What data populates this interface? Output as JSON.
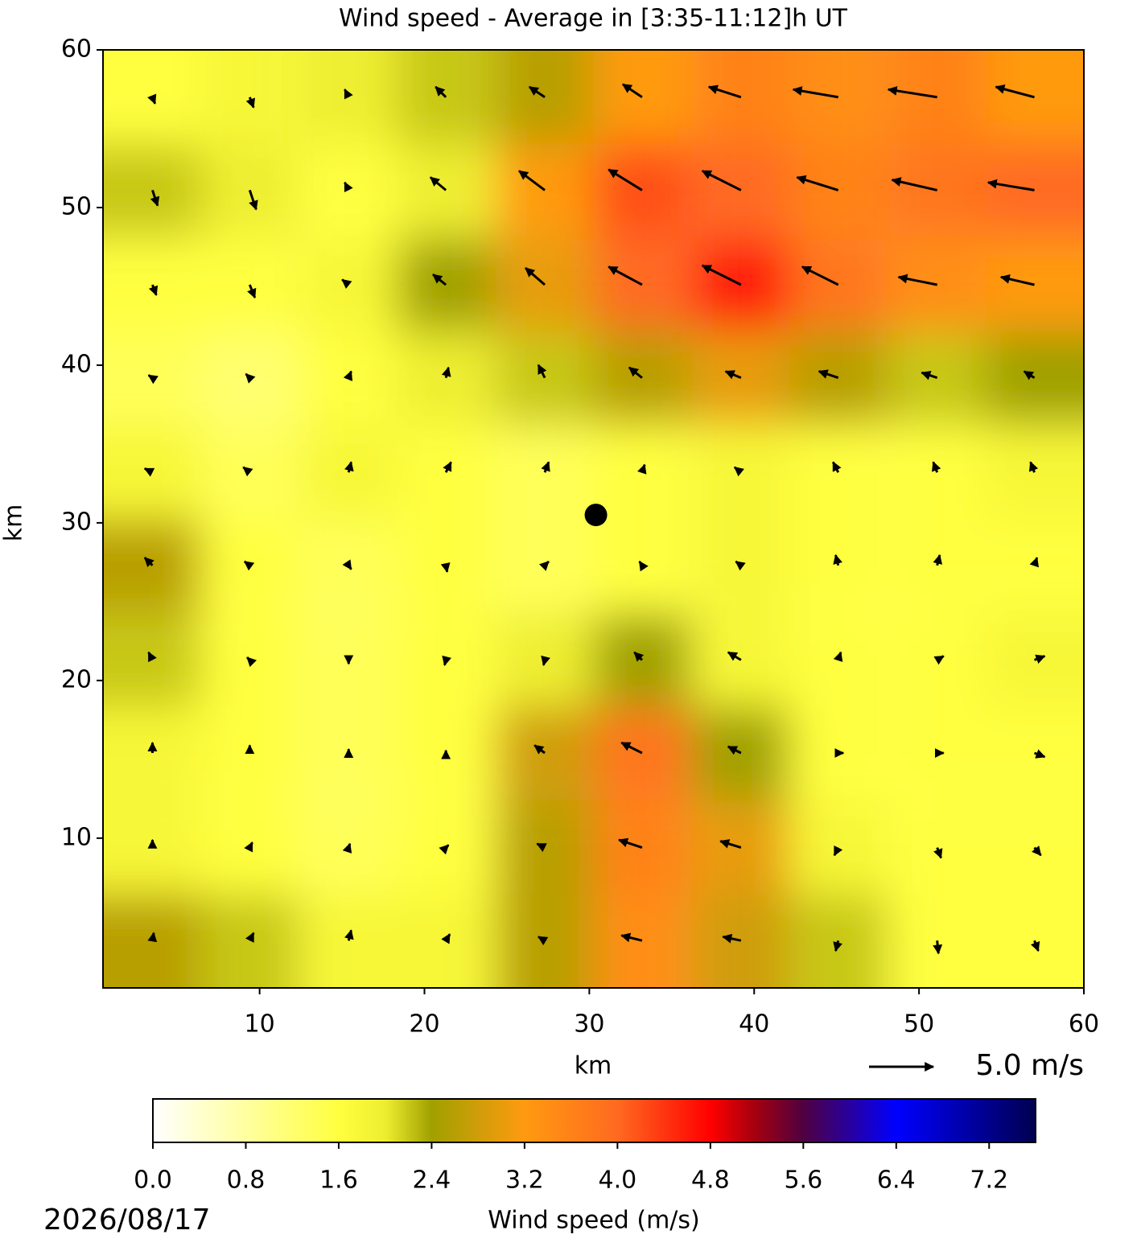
{
  "chart_data": {
    "type": "heatmap",
    "title": "Wind speed - Average in [3:35-11:12]h UT",
    "x_label": "km",
    "y_label": "km",
    "xlim": [
      0.5,
      60
    ],
    "ylim": [
      0.5,
      60
    ],
    "xticks": [
      10,
      20,
      30,
      40,
      50,
      60
    ],
    "yticks": [
      10,
      20,
      30,
      40,
      50,
      60
    ],
    "x": [
      3.5,
      9.4,
      15.4,
      21.3,
      27.3,
      33.2,
      39.2,
      45.1,
      51.1,
      57.0
    ],
    "y": [
      57.0,
      51.1,
      45.1,
      39.2,
      33.2,
      27.3,
      21.3,
      15.4,
      9.4,
      3.5
    ],
    "speed": [
      [
        1.6,
        1.8,
        2.0,
        2.2,
        2.6,
        3.2,
        3.6,
        3.4,
        3.6,
        3.2
      ],
      [
        2.2,
        2.0,
        1.6,
        2.0,
        3.2,
        4.2,
        4.0,
        3.6,
        3.8,
        4.0
      ],
      [
        1.6,
        1.6,
        1.8,
        2.4,
        3.0,
        4.0,
        4.6,
        3.8,
        3.4,
        3.2
      ],
      [
        1.4,
        1.2,
        1.6,
        2.0,
        2.2,
        2.6,
        3.0,
        2.6,
        2.2,
        2.4
      ],
      [
        1.8,
        1.4,
        1.8,
        1.6,
        1.4,
        1.6,
        1.8,
        1.6,
        1.6,
        1.8
      ],
      [
        2.6,
        1.6,
        1.4,
        1.6,
        1.4,
        1.6,
        1.8,
        1.6,
        1.6,
        1.6
      ],
      [
        2.2,
        1.6,
        1.4,
        1.6,
        2.0,
        2.4,
        1.8,
        1.6,
        1.6,
        1.8
      ],
      [
        1.8,
        1.6,
        1.4,
        1.6,
        2.8,
        3.8,
        2.4,
        1.6,
        1.6,
        1.6
      ],
      [
        1.8,
        1.6,
        1.4,
        1.6,
        2.6,
        3.6,
        3.0,
        1.8,
        1.6,
        1.6
      ],
      [
        2.6,
        2.2,
        1.8,
        1.8,
        2.6,
        3.4,
        2.8,
        2.2,
        1.6,
        1.6
      ]
    ],
    "u": [
      [
        0.2,
        0.3,
        -0.3,
        -0.8,
        -1.2,
        -1.5,
        -2.5,
        -3.5,
        -3.8,
        -3.0
      ],
      [
        0.4,
        0.5,
        -0.3,
        -1.2,
        -2.0,
        -2.6,
        -3.0,
        -3.2,
        -3.5,
        -3.6
      ],
      [
        0.3,
        0.4,
        -0.5,
        -1.0,
        -1.5,
        -2.6,
        -3.0,
        -2.8,
        -3.0,
        -2.6
      ],
      [
        -0.3,
        -0.3,
        0.2,
        0.2,
        -0.5,
        -1.0,
        -1.2,
        -1.5,
        -1.2,
        -0.8
      ],
      [
        -0.6,
        -0.5,
        0.2,
        0.4,
        0.3,
        0.2,
        -0.5,
        -0.4,
        -0.3,
        -0.3
      ],
      [
        -0.6,
        -0.4,
        0.2,
        0.1,
        0.3,
        -0.2,
        -0.4,
        -0.2,
        0.2,
        0.2
      ],
      [
        -0.3,
        -0.2,
        0.0,
        -0.1,
        -0.1,
        -0.6,
        -1.0,
        0.2,
        0.5,
        0.8
      ],
      [
        0.0,
        0.0,
        0.0,
        0.0,
        -0.8,
        -1.6,
        -1.0,
        0.4,
        0.5,
        0.8
      ],
      [
        0.0,
        0.2,
        0.1,
        0.2,
        -0.6,
        -1.8,
        -1.6,
        -0.3,
        0.3,
        0.5
      ],
      [
        0.1,
        0.3,
        0.2,
        0.3,
        -0.5,
        -1.6,
        -1.4,
        -0.2,
        0.1,
        0.3
      ]
    ],
    "v": [
      [
        -0.5,
        -0.8,
        0.6,
        0.8,
        0.8,
        1.0,
        0.8,
        0.6,
        0.6,
        0.8
      ],
      [
        -1.2,
        -1.5,
        0.6,
        1.0,
        1.5,
        1.6,
        1.5,
        1.0,
        0.8,
        0.6
      ],
      [
        -0.8,
        -1.0,
        0.4,
        0.8,
        1.3,
        1.4,
        1.5,
        1.4,
        0.6,
        0.6
      ],
      [
        0.2,
        0.3,
        0.5,
        0.8,
        1.0,
        0.8,
        0.5,
        0.5,
        0.4,
        0.5
      ],
      [
        0.3,
        0.4,
        0.8,
        0.8,
        0.8,
        0.6,
        0.4,
        0.8,
        0.8,
        0.8
      ],
      [
        0.6,
        0.3,
        -0.3,
        -0.5,
        0.3,
        0.3,
        0.3,
        0.8,
        0.8,
        0.6
      ],
      [
        0.6,
        0.2,
        -0.3,
        -0.4,
        -0.4,
        0.6,
        0.6,
        0.6,
        0.3,
        0.3
      ],
      [
        0.8,
        0.6,
        0.3,
        0.2,
        0.6,
        0.8,
        0.5,
        0.0,
        0.0,
        -0.3
      ],
      [
        0.6,
        0.4,
        0.3,
        0.2,
        0.3,
        0.6,
        0.5,
        -0.6,
        -0.8,
        -0.6
      ],
      [
        0.6,
        0.6,
        0.8,
        0.5,
        0.3,
        0.4,
        0.3,
        -0.8,
        -1.0,
        -0.8
      ]
    ],
    "marker": {
      "x": 30.4,
      "y": 30.5
    },
    "quiver_key": {
      "value": 5,
      "label": "5.0 m/s"
    },
    "colorbar": {
      "label": "Wind speed (m/s)",
      "clim": [
        0,
        7.6
      ],
      "ticks": [
        {
          "value": 0,
          "label": "0.0"
        },
        {
          "value": 0.8,
          "label": "0.8"
        },
        {
          "value": 1.6,
          "label": "1.6"
        },
        {
          "value": 2.4,
          "label": "2.4"
        },
        {
          "value": 3.2,
          "label": "3.2"
        },
        {
          "value": 4.0,
          "label": "4.0"
        },
        {
          "value": 4.8,
          "label": "4.8"
        },
        {
          "value": 5.6,
          "label": "5.6"
        },
        {
          "value": 6.4,
          "label": "6.4"
        },
        {
          "value": 7.2,
          "label": "7.2"
        }
      ],
      "colormap": [
        [
          0,
          "#ffffff"
        ],
        [
          0.8,
          "#ffffa0"
        ],
        [
          1.6,
          "#ffff40"
        ],
        [
          2.0,
          "#eeee30"
        ],
        [
          2.4,
          "#a0a000"
        ],
        [
          3.2,
          "#ff9a10"
        ],
        [
          4.0,
          "#ff6a20"
        ],
        [
          4.8,
          "#ff0000"
        ],
        [
          5.2,
          "#a00010"
        ],
        [
          5.6,
          "#500040"
        ],
        [
          6.4,
          "#0000ff"
        ],
        [
          7.6,
          "#000050"
        ]
      ]
    },
    "date": "2026/08/17"
  }
}
